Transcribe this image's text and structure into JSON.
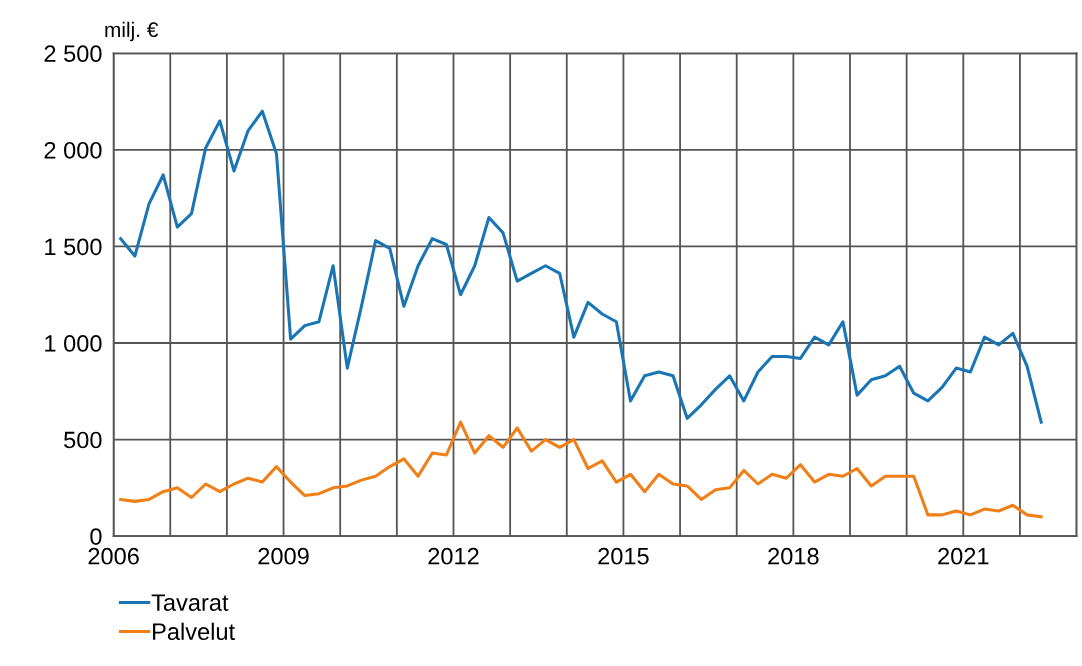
{
  "chart_data": {
    "type": "line",
    "ylabel": "milj. €",
    "x": [
      2006.125,
      2006.375,
      2006.625,
      2006.875,
      2007.125,
      2007.375,
      2007.625,
      2007.875,
      2008.125,
      2008.375,
      2008.625,
      2008.875,
      2009.125,
      2009.375,
      2009.625,
      2009.875,
      2010.125,
      2010.375,
      2010.625,
      2010.875,
      2011.125,
      2011.375,
      2011.625,
      2011.875,
      2012.125,
      2012.375,
      2012.625,
      2012.875,
      2013.125,
      2013.375,
      2013.625,
      2013.875,
      2014.125,
      2014.375,
      2014.625,
      2014.875,
      2015.125,
      2015.375,
      2015.625,
      2015.875,
      2016.125,
      2016.375,
      2016.625,
      2016.875,
      2017.125,
      2017.375,
      2017.625,
      2017.875,
      2018.125,
      2018.375,
      2018.625,
      2018.875,
      2019.125,
      2019.375,
      2019.625,
      2019.875,
      2020.125,
      2020.375,
      2020.625,
      2020.875,
      2021.125,
      2021.375,
      2021.625,
      2021.875,
      2022.125,
      2022.375
    ],
    "series": [
      {
        "name": "Tavarat",
        "color": "#1a75b5",
        "values": [
          1540,
          1450,
          1720,
          1870,
          1600,
          1670,
          2010,
          2150,
          1890,
          2100,
          2200,
          1980,
          1020,
          1090,
          1110,
          1400,
          870,
          1190,
          1530,
          1490,
          1190,
          1400,
          1540,
          1510,
          1250,
          1400,
          1650,
          1570,
          1320,
          1360,
          1400,
          1360,
          1030,
          1210,
          1150,
          1110,
          700,
          830,
          850,
          830,
          610,
          680,
          760,
          830,
          700,
          850,
          930,
          930,
          920,
          1030,
          990,
          1110,
          730,
          810,
          830,
          880,
          740,
          700,
          770,
          870,
          850,
          1030,
          990,
          1050,
          880,
          590
        ]
      },
      {
        "name": "Palvelut",
        "color": "#f07f18",
        "values": [
          190,
          180,
          190,
          230,
          250,
          200,
          270,
          230,
          270,
          300,
          280,
          360,
          280,
          210,
          220,
          250,
          260,
          290,
          310,
          360,
          400,
          310,
          430,
          420,
          590,
          430,
          520,
          460,
          560,
          440,
          500,
          460,
          500,
          350,
          390,
          280,
          320,
          230,
          320,
          270,
          260,
          190,
          240,
          250,
          340,
          270,
          320,
          300,
          370,
          280,
          320,
          310,
          350,
          260,
          310,
          310,
          310,
          110,
          110,
          130,
          110,
          140,
          130,
          160,
          110,
          100
        ]
      }
    ],
    "xlim": [
      2006,
      2023
    ],
    "xticks": [
      2006,
      {
        "value": 2007,
        "label": null
      },
      {
        "value": 2008,
        "label": null
      },
      2009,
      {
        "value": 2010,
        "label": null
      },
      {
        "value": 2011,
        "label": null
      },
      2012,
      {
        "value": 2013,
        "label": null
      },
      {
        "value": 2014,
        "label": null
      },
      2015,
      {
        "value": 2016,
        "label": null
      },
      {
        "value": 2017,
        "label": null
      },
      2018,
      {
        "value": 2019,
        "label": null
      },
      {
        "value": 2020,
        "label": null
      },
      2021,
      {
        "value": 2022,
        "label": null
      },
      {
        "value": 2023,
        "label": null
      }
    ],
    "ylim": [
      0,
      2500
    ],
    "yticks": [
      {
        "value": 0,
        "label": "0"
      },
      {
        "value": 500,
        "label": "500"
      },
      {
        "value": 1000,
        "label": "1 000"
      },
      {
        "value": 1500,
        "label": "1 500"
      },
      {
        "value": 2000,
        "label": "2 000"
      },
      {
        "value": 2500,
        "label": "2 500"
      }
    ],
    "grid": true,
    "legend": "bottom left",
    "line_style": "solid",
    "marker": "none"
  }
}
